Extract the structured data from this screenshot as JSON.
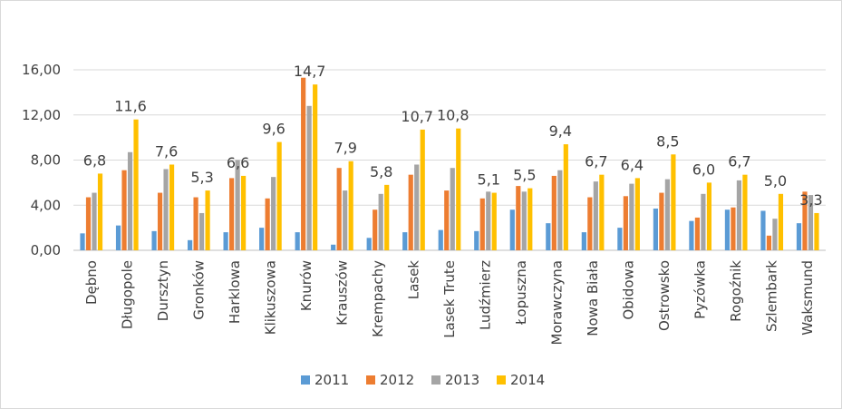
{
  "chart_data": {
    "type": "bar",
    "title": "",
    "xlabel": "",
    "ylabel": "",
    "ylim": [
      0,
      16
    ],
    "yticks": [
      "0,00",
      "4,00",
      "8,00",
      "12,00",
      "16,00"
    ],
    "ytick_values": [
      0,
      4,
      8,
      12,
      16
    ],
    "grid": "horizontal",
    "legend_position": "bottom",
    "categories": [
      "Dębno",
      "Długopole",
      "Dursztyn",
      "Gronków",
      "Harklowa",
      "Klikuszowa",
      "Knurów",
      "Krauszów",
      "Krempachy",
      "Lasek",
      "Lasek Trute",
      "Ludźmierz",
      "Łopuszna",
      "Morawczyna",
      "Nowa Biała",
      "Obidowa",
      "Ostrowsko",
      "Pyzówka",
      "Rogoźnik",
      "Szlembark",
      "Waksmund"
    ],
    "series": [
      {
        "name": "2011",
        "color": "#5b9bd5",
        "values": [
          1.5,
          2.2,
          1.7,
          0.9,
          1.6,
          2.0,
          1.6,
          0.5,
          1.1,
          1.6,
          1.8,
          1.7,
          3.6,
          2.4,
          1.6,
          2.0,
          3.7,
          2.6,
          3.6,
          3.5,
          2.4
        ]
      },
      {
        "name": "2012",
        "color": "#ed7d31",
        "values": [
          4.7,
          7.1,
          5.1,
          4.7,
          6.4,
          4.6,
          15.3,
          7.3,
          3.6,
          6.7,
          5.3,
          4.6,
          5.7,
          6.6,
          4.7,
          4.8,
          5.1,
          2.9,
          3.8,
          1.3,
          5.2
        ]
      },
      {
        "name": "2013",
        "color": "#a5a5a5",
        "values": [
          5.1,
          8.7,
          7.2,
          3.3,
          8.0,
          6.5,
          12.8,
          5.3,
          5.0,
          7.6,
          7.3,
          5.2,
          5.2,
          7.1,
          6.1,
          5.9,
          6.3,
          5.0,
          6.2,
          2.8,
          4.9
        ]
      },
      {
        "name": "2014",
        "color": "#ffc000",
        "values": [
          6.8,
          11.6,
          7.6,
          5.3,
          6.6,
          9.6,
          14.7,
          7.9,
          5.8,
          10.7,
          10.8,
          5.1,
          5.5,
          9.4,
          6.7,
          6.4,
          8.5,
          6.0,
          6.7,
          5.0,
          3.3
        ]
      }
    ],
    "data_labels_2014": [
      "6,8",
      "11,6",
      "7,6",
      "5,3",
      "6,6",
      "9,6",
      "14,7",
      "7,9",
      "5,8",
      "10,7",
      "10,8",
      "5,1",
      "5,5",
      "9,4",
      "6,7",
      "6,4",
      "8,5",
      "6,0",
      "6,7",
      "5,0",
      "3,3"
    ]
  }
}
